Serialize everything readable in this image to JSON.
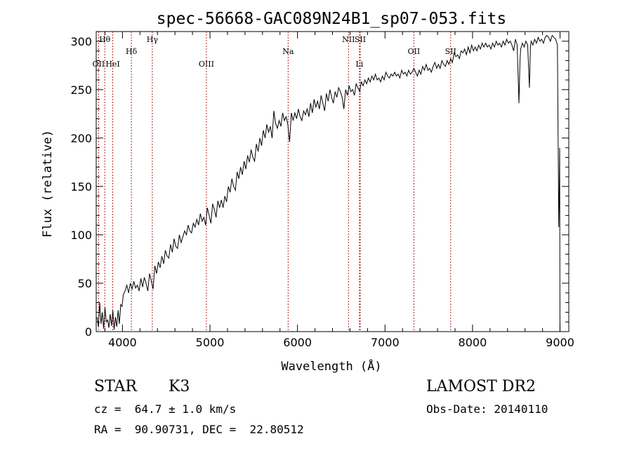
{
  "chart_data": {
    "type": "line",
    "title": "spec-56668-GAC089N24B1_sp07-053.fits",
    "xlabel": "Wavelength (Å)",
    "ylabel": "Flux (relative)",
    "xlim": [
      3700,
      9100
    ],
    "ylim": [
      0,
      310
    ],
    "xticks": [
      4000,
      5000,
      6000,
      7000,
      8000,
      9000
    ],
    "yticks": [
      0,
      50,
      100,
      150,
      200,
      250,
      300
    ],
    "colors": {
      "spectrum": "#000000",
      "lines": "#b22222",
      "axes": "#000000"
    },
    "spectral_lines": [
      {
        "label": "Hθ",
        "wavelength": 3798,
        "row": 1
      },
      {
        "label": "OII",
        "wavelength": 3727,
        "row": 3
      },
      {
        "label": "HeI",
        "wavelength": 3889,
        "row": 3
      },
      {
        "label": "Hδ",
        "wavelength": 4102,
        "row": 2
      },
      {
        "label": "Hγ",
        "wavelength": 4341,
        "row": 1
      },
      {
        "label": "OIII",
        "wavelength": 4959,
        "row": 3
      },
      {
        "label": "Na",
        "wavelength": 5893,
        "row": 2
      },
      {
        "label": "NII",
        "wavelength": 6583,
        "row": 1
      },
      {
        "label": "SII",
        "wavelength": 6717,
        "row": 1
      },
      {
        "label": "Li",
        "wavelength": 6708,
        "row": 3
      },
      {
        "label": "OII",
        "wavelength": 7330,
        "row": 2
      },
      {
        "label": "SII",
        "wavelength": 7750,
        "row": 2
      }
    ],
    "series": [
      {
        "name": "flux",
        "x": [
          3710,
          3725,
          3740,
          3755,
          3770,
          3785,
          3800,
          3815,
          3830,
          3845,
          3860,
          3875,
          3890,
          3905,
          3920,
          3935,
          3950,
          3965,
          3980,
          3995,
          4010,
          4030,
          4050,
          4070,
          4090,
          4110,
          4130,
          4150,
          4170,
          4190,
          4210,
          4230,
          4250,
          4270,
          4290,
          4310,
          4330,
          4350,
          4370,
          4390,
          4410,
          4430,
          4450,
          4470,
          4490,
          4510,
          4530,
          4550,
          4570,
          4590,
          4610,
          4630,
          4650,
          4670,
          4690,
          4710,
          4730,
          4750,
          4770,
          4790,
          4810,
          4830,
          4850,
          4870,
          4890,
          4910,
          4930,
          4950,
          4970,
          4990,
          5010,
          5030,
          5050,
          5070,
          5090,
          5110,
          5130,
          5150,
          5170,
          5190,
          5210,
          5230,
          5250,
          5270,
          5290,
          5310,
          5330,
          5350,
          5370,
          5390,
          5410,
          5430,
          5450,
          5470,
          5490,
          5510,
          5530,
          5550,
          5570,
          5590,
          5610,
          5630,
          5650,
          5670,
          5690,
          5710,
          5730,
          5750,
          5770,
          5790,
          5810,
          5830,
          5850,
          5870,
          5890,
          5910,
          5930,
          5950,
          5970,
          5990,
          6010,
          6030,
          6050,
          6070,
          6090,
          6110,
          6130,
          6150,
          6170,
          6190,
          6210,
          6230,
          6250,
          6270,
          6290,
          6310,
          6330,
          6350,
          6370,
          6390,
          6410,
          6430,
          6450,
          6470,
          6490,
          6510,
          6530,
          6550,
          6570,
          6590,
          6610,
          6630,
          6650,
          6670,
          6690,
          6710,
          6730,
          6750,
          6770,
          6790,
          6810,
          6830,
          6850,
          6870,
          6890,
          6910,
          6930,
          6950,
          6970,
          6990,
          7010,
          7030,
          7050,
          7070,
          7090,
          7110,
          7130,
          7150,
          7170,
          7190,
          7210,
          7230,
          7250,
          7270,
          7290,
          7310,
          7330,
          7350,
          7370,
          7390,
          7410,
          7430,
          7450,
          7470,
          7490,
          7510,
          7530,
          7550,
          7570,
          7590,
          7610,
          7630,
          7650,
          7670,
          7690,
          7710,
          7730,
          7750,
          7770,
          7790,
          7810,
          7830,
          7850,
          7870,
          7890,
          7910,
          7930,
          7950,
          7970,
          7990,
          8010,
          8030,
          8050,
          8070,
          8090,
          8110,
          8130,
          8150,
          8170,
          8190,
          8210,
          8230,
          8250,
          8270,
          8290,
          8310,
          8330,
          8350,
          8370,
          8390,
          8410,
          8430,
          8450,
          8470,
          8490,
          8510,
          8530,
          8542,
          8550,
          8570,
          8590,
          8610,
          8630,
          8650,
          8662,
          8670,
          8690,
          8710,
          8730,
          8750,
          8770,
          8790,
          8810,
          8830,
          8850,
          8870,
          8890,
          8910,
          8930,
          8950,
          8970,
          8985,
          8992,
          8996,
          8999
        ],
        "y": [
          15,
          5,
          30,
          8,
          20,
          3,
          25,
          10,
          12,
          4,
          18,
          6,
          22,
          2,
          15,
          5,
          22,
          8,
          28,
          26,
          38,
          42,
          48,
          40,
          50,
          44,
          52,
          45,
          48,
          42,
          55,
          46,
          56,
          50,
          42,
          60,
          52,
          44,
          68,
          60,
          72,
          66,
          78,
          70,
          84,
          78,
          76,
          90,
          82,
          96,
          88,
          86,
          100,
          92,
          98,
          104,
          100,
          110,
          104,
          102,
          112,
          108,
          116,
          110,
          122,
          114,
          118,
          110,
          128,
          120,
          112,
          132,
          126,
          118,
          135,
          128,
          136,
          128,
          140,
          134,
          150,
          144,
          158,
          150,
          146,
          165,
          158,
          170,
          162,
          176,
          168,
          182,
          175,
          188,
          180,
          176,
          194,
          186,
          200,
          192,
          208,
          200,
          214,
          206,
          212,
          200,
          228,
          215,
          210,
          218,
          212,
          226,
          218,
          222,
          214,
          196,
          226,
          218,
          226,
          220,
          230,
          222,
          218,
          228,
          224,
          230,
          222,
          236,
          226,
          240,
          232,
          238,
          230,
          244,
          236,
          228,
          246,
          238,
          250,
          242,
          236,
          248,
          242,
          252,
          248,
          242,
          230,
          250,
          244,
          254,
          248,
          250,
          244,
          256,
          252,
          248,
          258,
          254,
          260,
          256,
          262,
          258,
          264,
          260,
          266,
          260,
          262,
          258,
          264,
          260,
          268,
          264,
          262,
          266,
          264,
          268,
          264,
          266,
          262,
          270,
          266,
          268,
          264,
          270,
          266,
          268,
          272,
          268,
          264,
          270,
          266,
          274,
          270,
          276,
          270,
          272,
          268,
          274,
          278,
          272,
          276,
          272,
          280,
          276,
          274,
          280,
          276,
          282,
          278,
          288,
          284,
          286,
          282,
          290,
          288,
          292,
          286,
          294,
          288,
          296,
          290,
          294,
          290,
          296,
          292,
          298,
          294,
          298,
          294,
          296,
          292,
          298,
          294,
          300,
          296,
          298,
          294,
          300,
          296,
          302,
          298,
          300,
          296,
          290,
          302,
          296,
          236,
          280,
          292,
          298,
          294,
          300,
          296,
          252,
          294,
          300,
          296,
          302,
          298,
          304,
          300,
          302,
          298,
          304,
          306,
          304,
          300,
          306,
          304,
          302,
          296,
          108,
          150,
          190,
          0
        ]
      }
    ]
  },
  "info": {
    "object_class": "STAR",
    "subclass": "K3",
    "survey": "LAMOST DR2",
    "redshift": "cz =  64.7 ± 1.0 km/s",
    "obs_date": "Obs-Date: 20140110",
    "coords": "RA =  90.90731, DEC =  22.80512"
  }
}
